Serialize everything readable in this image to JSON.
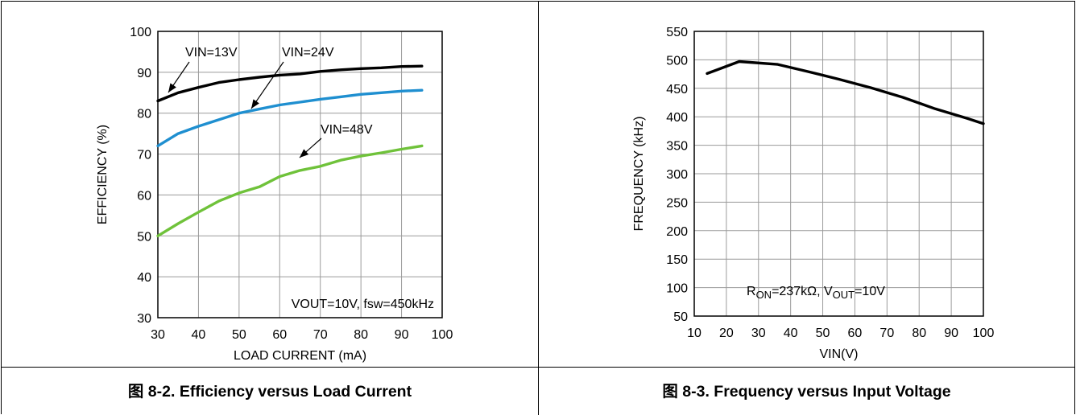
{
  "captions": {
    "left": "图 8-2. Efficiency versus Load Current",
    "right": "图 8-3. Frequency versus Input Voltage"
  },
  "chart_data": [
    {
      "type": "line",
      "xlabel": "LOAD CURRENT (mA)",
      "ylabel": "EFFICIENCY (%)",
      "xlim": [
        30,
        100
      ],
      "ylim": [
        30,
        100
      ],
      "xticks": [
        30,
        40,
        50,
        60,
        70,
        80,
        90,
        100
      ],
      "yticks": [
        30,
        40,
        50,
        60,
        70,
        80,
        90,
        100
      ],
      "grid": true,
      "annotation": "VOUT=10V, fsw=450kHz",
      "series": [
        {
          "name": "VIN=13V",
          "color": "#000000",
          "x": [
            30,
            35,
            40,
            45,
            50,
            55,
            60,
            65,
            70,
            75,
            80,
            85,
            90,
            95
          ],
          "y": [
            83,
            85,
            86.3,
            87.5,
            88.2,
            88.8,
            89.3,
            89.6,
            90.2,
            90.6,
            90.9,
            91.1,
            91.4,
            91.5
          ]
        },
        {
          "name": "VIN=24V",
          "color": "#1f8fd0",
          "x": [
            30,
            35,
            40,
            45,
            50,
            55,
            60,
            65,
            70,
            75,
            80,
            85,
            90,
            95
          ],
          "y": [
            72,
            75,
            76.8,
            78.4,
            80,
            81,
            82,
            82.7,
            83.4,
            84,
            84.6,
            85,
            85.4,
            85.6
          ]
        },
        {
          "name": "VIN=48V",
          "color": "#6fc23a",
          "x": [
            30,
            35,
            40,
            45,
            50,
            55,
            60,
            65,
            70,
            75,
            80,
            85,
            90,
            95
          ],
          "y": [
            50,
            53,
            55.8,
            58.5,
            60.5,
            62,
            64.5,
            66,
            67,
            68.5,
            69.5,
            70.3,
            71.2,
            72
          ]
        }
      ]
    },
    {
      "type": "line",
      "xlabel": "VIN(V)",
      "ylabel": "FREQUENCY (kHz)",
      "xlim": [
        10,
        100
      ],
      "ylim": [
        50,
        550
      ],
      "xticks": [
        10,
        20,
        30,
        40,
        50,
        60,
        70,
        80,
        90,
        100
      ],
      "yticks": [
        50,
        100,
        150,
        200,
        250,
        300,
        350,
        400,
        450,
        500,
        550
      ],
      "grid": true,
      "annotation": {
        "r": "R",
        "r_sub": "ON",
        "mid": "=237kΩ, V",
        "v_sub": "OUT",
        "end": "=10V"
      },
      "series": [
        {
          "color": "#000000",
          "x": [
            14,
            24,
            36,
            45,
            55,
            65,
            75,
            85,
            95,
            100
          ],
          "y": [
            476,
            497,
            492,
            480,
            466,
            451,
            434,
            414,
            397,
            388
          ]
        }
      ]
    }
  ]
}
